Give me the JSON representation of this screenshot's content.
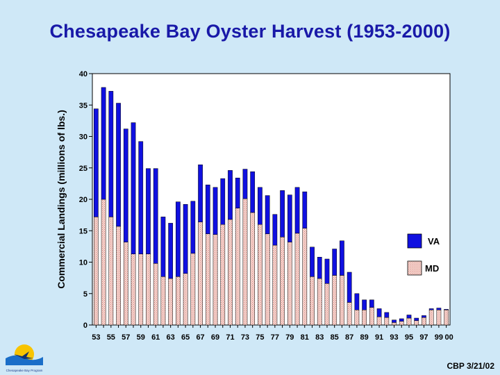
{
  "title": "Chesapeake Bay Oyster Harvest (1953-2000)",
  "footer": "CBP 3/21/02",
  "logo_text": "Chesapeake Bay Program",
  "colors": {
    "background": "#cfe8f7",
    "title": "#1919a8",
    "va": "#1010e0",
    "md": "#f6d8d0",
    "md_dots": "#d88080"
  },
  "chart_data": {
    "type": "bar",
    "stacked": true,
    "title": "Chesapeake Bay Oyster Harvest (1953-2000)",
    "xlabel": "",
    "ylabel": "Commercial Landings (millions of lbs.)",
    "ylim": [
      0,
      40
    ],
    "yticks": [
      0,
      5,
      10,
      15,
      20,
      25,
      30,
      35,
      40
    ],
    "legend_position": "right",
    "categories": [
      "53",
      "54",
      "55",
      "56",
      "57",
      "58",
      "59",
      "60",
      "61",
      "62",
      "63",
      "64",
      "65",
      "66",
      "67",
      "68",
      "69",
      "70",
      "71",
      "72",
      "73",
      "74",
      "75",
      "76",
      "77",
      "78",
      "79",
      "80",
      "81",
      "82",
      "83",
      "84",
      "85",
      "86",
      "87",
      "88",
      "89",
      "90",
      "91",
      "92",
      "93",
      "94",
      "95",
      "96",
      "97",
      "98",
      "99",
      "00"
    ],
    "xtick_labels": [
      "53",
      "55",
      "57",
      "59",
      "61",
      "63",
      "65",
      "67",
      "69",
      "71",
      "73",
      "75",
      "77",
      "79",
      "81",
      "83",
      "85",
      "87",
      "89",
      "91",
      "93",
      "95",
      "97",
      "99",
      "00"
    ],
    "series": [
      {
        "name": "MD",
        "values": [
          17.2,
          20.0,
          17.2,
          15.7,
          13.2,
          11.3,
          11.3,
          11.3,
          9.8,
          7.7,
          7.4,
          7.7,
          8.2,
          11.4,
          16.4,
          14.5,
          14.4,
          16.0,
          16.8,
          18.6,
          20.1,
          17.9,
          16.0,
          14.5,
          12.7,
          14.0,
          13.2,
          14.6,
          15.4,
          7.7,
          7.4,
          6.6,
          7.9,
          7.9,
          3.6,
          2.4,
          2.4,
          2.8,
          1.3,
          1.2,
          0.4,
          0.6,
          1.1,
          0.7,
          1.2,
          2.4,
          2.4,
          2.4
        ]
      },
      {
        "name": "VA",
        "values": [
          17.2,
          17.8,
          20.0,
          19.6,
          18.0,
          20.9,
          17.9,
          13.6,
          15.1,
          9.5,
          8.8,
          11.9,
          11.0,
          8.3,
          9.1,
          7.8,
          7.5,
          7.3,
          7.8,
          4.8,
          4.7,
          6.5,
          5.9,
          6.1,
          4.9,
          7.4,
          7.5,
          7.3,
          5.8,
          4.7,
          3.4,
          3.9,
          4.2,
          5.5,
          4.8,
          2.6,
          1.6,
          1.2,
          1.3,
          0.8,
          0.4,
          0.4,
          0.5,
          0.4,
          0.3,
          0.2,
          0.3,
          0.1
        ]
      }
    ]
  }
}
